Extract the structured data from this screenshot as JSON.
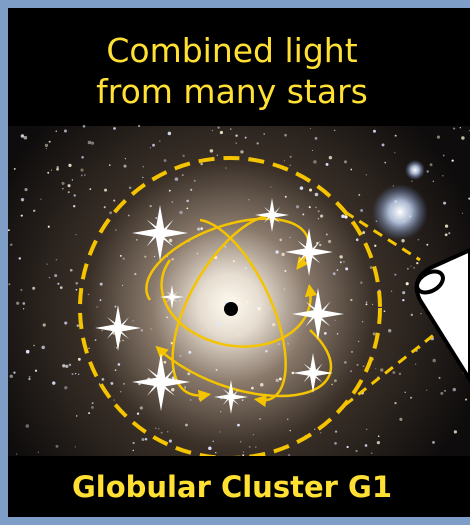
{
  "header": {
    "title_lines": [
      "Combined light",
      "from many stars"
    ]
  },
  "footer": {
    "label": "Globular Cluster G1"
  }
}
